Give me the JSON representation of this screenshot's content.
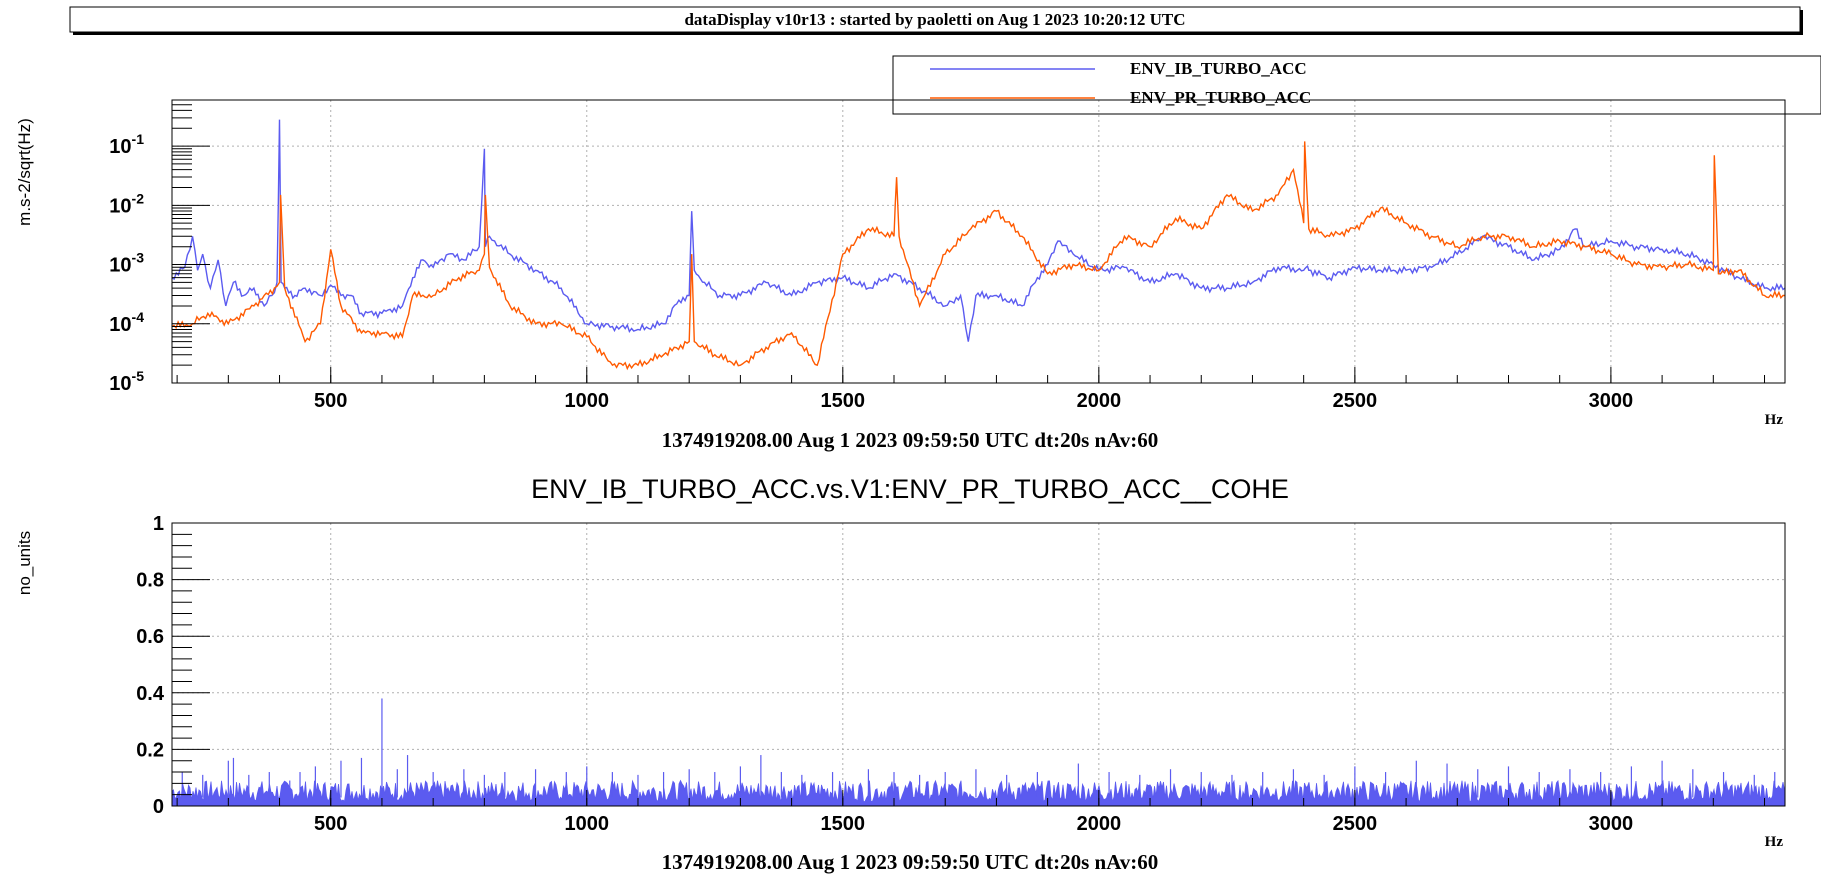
{
  "header": {
    "text": "dataDisplay v10r13 : started by paoletti on Aug  1 2023 10:20:12 UTC"
  },
  "colors": {
    "ib": "#5b5bf0",
    "pr": "#ff5a00",
    "grid": "#b0b0b0",
    "axis": "#000000"
  },
  "chart_data": [
    {
      "type": "line",
      "ylabel": "m.s-2/sqrt(Hz)",
      "xlabel": "Hz",
      "footer": "1374919208.00 Aug 1 2023 09:59:50 UTC dt:20s nAv:60",
      "xlim": [
        190,
        3340
      ],
      "ylim": [
        1e-05,
        0.6
      ],
      "yscale": "log",
      "grid": true,
      "legend_position": "top-right",
      "x_ticks": [
        500,
        1000,
        1500,
        2000,
        2500,
        3000
      ],
      "x_tick_labels": [
        "500",
        "1000",
        "1500",
        "2000",
        "2500",
        "3000"
      ],
      "y_ticks": [
        {
          "base": "10",
          "exp": "-5",
          "value": 1e-05
        },
        {
          "base": "10",
          "exp": "-4",
          "value": 0.0001
        },
        {
          "base": "10",
          "exp": "-3",
          "value": 0.001
        },
        {
          "base": "10",
          "exp": "-2",
          "value": 0.01
        },
        {
          "base": "10",
          "exp": "-1",
          "value": 0.1
        }
      ],
      "series": [
        {
          "name": "ENV_IB_TURBO_ACC",
          "color": "#5b5bf0",
          "x": [
            190,
            215,
            230,
            240,
            250,
            265,
            280,
            295,
            310,
            330,
            350,
            370,
            385,
            395,
            400,
            403,
            410,
            430,
            450,
            480,
            500,
            520,
            540,
            560,
            600,
            640,
            660,
            680,
            700,
            730,
            760,
            790,
            800,
            802,
            810,
            820,
            850,
            900,
            950,
            1000,
            1050,
            1100,
            1150,
            1180,
            1200,
            1205,
            1210,
            1230,
            1260,
            1300,
            1350,
            1400,
            1450,
            1500,
            1550,
            1600,
            1650,
            1700,
            1730,
            1745,
            1760,
            1800,
            1850,
            1880,
            1900,
            1920,
            1950,
            2000,
            2050,
            2100,
            2150,
            2200,
            2250,
            2300,
            2350,
            2400,
            2405,
            2410,
            2450,
            2500,
            2550,
            2600,
            2650,
            2700,
            2750,
            2800,
            2850,
            2900,
            2930,
            2950,
            3000,
            3050,
            3100,
            3150,
            3200,
            3250,
            3300,
            3340
          ],
          "y": [
            0.0006,
            0.0009,
            0.003,
            0.0008,
            0.0015,
            0.0004,
            0.0012,
            0.0002,
            0.0005,
            0.0003,
            0.0004,
            0.0002,
            0.0003,
            0.0005,
            0.28,
            0.0005,
            0.0004,
            0.0003,
            0.0004,
            0.0003,
            0.00045,
            0.0003,
            0.0003,
            0.00015,
            0.00015,
            0.0002,
            0.0006,
            0.0012,
            0.0009,
            0.0015,
            0.0012,
            0.002,
            0.09,
            0.002,
            0.003,
            0.0025,
            0.0015,
            0.0008,
            0.0004,
            0.0001,
            9e-05,
            8e-05,
            0.0001,
            0.00025,
            0.0003,
            0.008,
            0.0008,
            0.0005,
            0.0003,
            0.0003,
            0.0005,
            0.0003,
            0.0005,
            0.0006,
            0.0004,
            0.0007,
            0.0004,
            0.0002,
            0.0003,
            5e-05,
            0.0003,
            0.0003,
            0.0002,
            0.0006,
            0.001,
            0.0025,
            0.0015,
            0.0008,
            0.0009,
            0.0005,
            0.0007,
            0.0004,
            0.0004,
            0.0005,
            0.0009,
            0.0008,
            0.0009,
            0.0008,
            0.0006,
            0.0009,
            0.0008,
            0.0008,
            0.0009,
            0.0015,
            0.003,
            0.002,
            0.0012,
            0.0018,
            0.004,
            0.002,
            0.0025,
            0.002,
            0.0018,
            0.0015,
            0.001,
            0.0006,
            0.0004,
            0.0004
          ]
        },
        {
          "name": "ENV_PR_TURBO_ACC",
          "color": "#ff5a00",
          "x": [
            190,
            230,
            260,
            300,
            350,
            390,
            400,
            402,
            410,
            450,
            480,
            500,
            520,
            560,
            600,
            640,
            660,
            700,
            750,
            790,
            800,
            802,
            810,
            850,
            900,
            950,
            1000,
            1050,
            1100,
            1150,
            1200,
            1205,
            1210,
            1250,
            1300,
            1350,
            1400,
            1450,
            1500,
            1550,
            1600,
            1605,
            1610,
            1650,
            1700,
            1750,
            1800,
            1850,
            1900,
            1950,
            2000,
            2050,
            2100,
            2150,
            2200,
            2250,
            2300,
            2350,
            2380,
            2400,
            2402,
            2410,
            2450,
            2500,
            2550,
            2600,
            2650,
            2700,
            2750,
            2800,
            2850,
            2900,
            2950,
            3000,
            3050,
            3100,
            3150,
            3200,
            3202,
            3210,
            3250,
            3300,
            3340
          ],
          "y": [
            9e-05,
            0.0001,
            0.00015,
            0.0001,
            0.0002,
            0.0004,
            0.0005,
            0.015,
            0.0004,
            5e-05,
            0.0001,
            0.0018,
            0.0002,
            7e-05,
            7e-05,
            6e-05,
            0.0003,
            0.0003,
            0.0006,
            0.0008,
            0.0015,
            0.015,
            0.0009,
            0.0002,
            0.0001,
            0.0001,
            6e-05,
            2e-05,
            2e-05,
            3e-05,
            5e-05,
            0.0015,
            5e-05,
            3e-05,
            2e-05,
            4e-05,
            7e-05,
            2e-05,
            0.0015,
            0.004,
            0.003,
            0.03,
            0.003,
            0.0002,
            0.0015,
            0.004,
            0.008,
            0.003,
            0.0007,
            0.001,
            0.0008,
            0.003,
            0.002,
            0.006,
            0.004,
            0.015,
            0.008,
            0.015,
            0.04,
            0.005,
            0.12,
            0.004,
            0.003,
            0.004,
            0.009,
            0.005,
            0.003,
            0.002,
            0.003,
            0.003,
            0.002,
            0.0025,
            0.002,
            0.0015,
            0.001,
            0.0009,
            0.001,
            0.0008,
            0.07,
            0.0007,
            0.0008,
            0.0003,
            0.0003
          ]
        }
      ],
      "legend": [
        {
          "name": "ENV_IB_TURBO_ACC",
          "color": "#5b5bf0"
        },
        {
          "name": "ENV_PR_TURBO_ACC",
          "color": "#ff5a00"
        }
      ]
    },
    {
      "type": "line",
      "title": "ENV_IB_TURBO_ACC.vs.V1:ENV_PR_TURBO_ACC__COHE",
      "ylabel": "no_units",
      "xlabel": "Hz",
      "footer": "1374919208.00 Aug 1 2023 09:59:50 UTC dt:20s nAv:60",
      "xlim": [
        190,
        3340
      ],
      "ylim": [
        0,
        1
      ],
      "grid": true,
      "x_ticks": [
        500,
        1000,
        1500,
        2000,
        2500,
        3000
      ],
      "x_tick_labels": [
        "500",
        "1000",
        "1500",
        "2000",
        "2500",
        "3000"
      ],
      "y_ticks": [
        0,
        0.2,
        0.4,
        0.6,
        0.8,
        1
      ],
      "y_tick_labels": [
        "0",
        "0.2",
        "0.4",
        "0.6",
        "0.8",
        "1"
      ],
      "baseline": 0.04,
      "series": [
        {
          "name": "ENV_IB_TURBO_ACC.vs.V1:ENV_PR_TURBO_ACC__COHE",
          "color": "#5b5bf0",
          "peaks_x": [
            210,
            250,
            300,
            310,
            340,
            380,
            420,
            440,
            470,
            520,
            560,
            600,
            630,
            650,
            700,
            760,
            800,
            840,
            900,
            960,
            1000,
            1050,
            1100,
            1150,
            1200,
            1250,
            1300,
            1340,
            1380,
            1420,
            1480,
            1550,
            1600,
            1650,
            1700,
            1760,
            1820,
            1880,
            1960,
            2020,
            2080,
            2140,
            2200,
            2260,
            2320,
            2380,
            2440,
            2500,
            2560,
            2620,
            2680,
            2740,
            2800,
            2860,
            2920,
            2980,
            3040,
            3100,
            3160,
            3220,
            3280,
            3320
          ],
          "peaks_y": [
            0.12,
            0.11,
            0.16,
            0.17,
            0.11,
            0.12,
            0.09,
            0.12,
            0.14,
            0.16,
            0.17,
            0.38,
            0.13,
            0.18,
            0.12,
            0.13,
            0.11,
            0.12,
            0.13,
            0.12,
            0.14,
            0.12,
            0.11,
            0.12,
            0.13,
            0.12,
            0.14,
            0.18,
            0.12,
            0.11,
            0.12,
            0.13,
            0.12,
            0.11,
            0.12,
            0.13,
            0.11,
            0.12,
            0.15,
            0.12,
            0.11,
            0.13,
            0.12,
            0.11,
            0.12,
            0.13,
            0.11,
            0.14,
            0.12,
            0.16,
            0.15,
            0.13,
            0.14,
            0.12,
            0.13,
            0.12,
            0.14,
            0.16,
            0.13,
            0.12,
            0.11,
            0.12
          ]
        }
      ]
    }
  ]
}
